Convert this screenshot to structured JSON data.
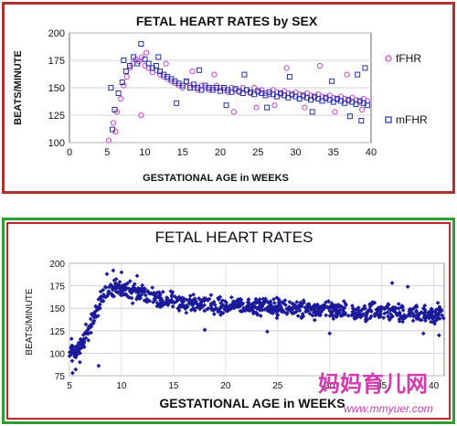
{
  "chart_data": [
    {
      "type": "scatter",
      "title": "FETAL HEART RATES by SEX",
      "xlabel": "GESTATIONAL AGE in WEEKS",
      "ylabel": "BEATS/MINUTE",
      "xlim": [
        0,
        40
      ],
      "ylim": [
        100,
        200
      ],
      "xticks": [
        "0",
        "5",
        "10",
        "15",
        "20",
        "25",
        "30",
        "35",
        "40"
      ],
      "yticks": [
        "100",
        "125",
        "150",
        "175",
        "200"
      ],
      "grid": true,
      "legend": "right",
      "series": [
        {
          "name": "fFHR",
          "marker": "circle",
          "color": "#cc44cc",
          "points": [
            [
              5.2,
              102
            ],
            [
              5.8,
              118
            ],
            [
              6.3,
              128
            ],
            [
              6.8,
              140
            ],
            [
              7.2,
              152
            ],
            [
              7.6,
              160
            ],
            [
              8.0,
              168
            ],
            [
              8.4,
              172
            ],
            [
              8.8,
              176
            ],
            [
              9.2,
              174
            ],
            [
              9.6,
              178
            ],
            [
              10.0,
              170
            ],
            [
              10.5,
              168
            ],
            [
              11.0,
              164
            ],
            [
              11.5,
              166
            ],
            [
              12.0,
              162
            ],
            [
              12.5,
              160
            ],
            [
              13.0,
              158
            ],
            [
              13.5,
              156
            ],
            [
              14.0,
              154
            ],
            [
              14.5,
              152
            ],
            [
              15.0,
              150
            ],
            [
              15.5,
              155
            ],
            [
              16.0,
              152
            ],
            [
              16.5,
              150
            ],
            [
              17.0,
              148
            ],
            [
              17.5,
              152
            ],
            [
              18.0,
              150
            ],
            [
              18.5,
              148
            ],
            [
              19.0,
              150
            ],
            [
              19.5,
              152
            ],
            [
              20.0,
              150
            ],
            [
              20.5,
              148
            ],
            [
              21.0,
              146
            ],
            [
              21.5,
              150
            ],
            [
              22.0,
              148
            ],
            [
              22.5,
              146
            ],
            [
              23.0,
              150
            ],
            [
              23.5,
              148
            ],
            [
              24.0,
              145
            ],
            [
              24.5,
              150
            ],
            [
              25.0,
              146
            ],
            [
              25.5,
              148
            ],
            [
              26.0,
              145
            ],
            [
              26.5,
              144
            ],
            [
              27.0,
              148
            ],
            [
              27.5,
              146
            ],
            [
              28.0,
              144
            ],
            [
              28.5,
              147
            ],
            [
              29.0,
              145
            ],
            [
              29.5,
              143
            ],
            [
              30.0,
              146
            ],
            [
              30.5,
              144
            ],
            [
              31.0,
              142
            ],
            [
              31.5,
              145
            ],
            [
              32.0,
              143
            ],
            [
              32.5,
              141
            ],
            [
              33.0,
              144
            ],
            [
              33.5,
              142
            ],
            [
              34.0,
              140
            ],
            [
              34.5,
              143
            ],
            [
              35.0,
              141
            ],
            [
              35.5,
              139
            ],
            [
              36.0,
              142
            ],
            [
              36.5,
              140
            ],
            [
              37.0,
              138
            ],
            [
              37.5,
              141
            ],
            [
              38.0,
              139
            ],
            [
              38.5,
              137
            ],
            [
              39.0,
              140
            ],
            [
              39.5,
              138
            ],
            [
              10.2,
              182
            ],
            [
              12.8,
              172
            ],
            [
              16.3,
              165
            ],
            [
              21.8,
              128
            ],
            [
              24.8,
              132
            ],
            [
              28.8,
              168
            ],
            [
              33.2,
              170
            ],
            [
              36.8,
              162
            ],
            [
              9.5,
              125
            ],
            [
              6.1,
              110
            ],
            [
              19.2,
              162
            ],
            [
              27.2,
              134
            ],
            [
              31.2,
              132
            ],
            [
              35.2,
              128
            ],
            [
              38.8,
              130
            ]
          ]
        },
        {
          "name": "mFHR",
          "marker": "square",
          "color": "#2233aa",
          "points": [
            [
              5.5,
              150
            ],
            [
              6.0,
              130
            ],
            [
              6.5,
              145
            ],
            [
              7.0,
              155
            ],
            [
              7.5,
              165
            ],
            [
              8.0,
              170
            ],
            [
              8.5,
              178
            ],
            [
              9.0,
              172
            ],
            [
              9.5,
              190
            ],
            [
              10.0,
              176
            ],
            [
              10.5,
              172
            ],
            [
              11.0,
              168
            ],
            [
              11.5,
              170
            ],
            [
              12.0,
              165
            ],
            [
              12.5,
              162
            ],
            [
              13.0,
              160
            ],
            [
              13.5,
              158
            ],
            [
              14.0,
              156
            ],
            [
              14.5,
              154
            ],
            [
              15.0,
              152
            ],
            [
              15.5,
              156
            ],
            [
              16.0,
              150
            ],
            [
              16.5,
              153
            ],
            [
              17.0,
              150
            ],
            [
              17.5,
              148
            ],
            [
              18.0,
              152
            ],
            [
              18.5,
              150
            ],
            [
              19.0,
              148
            ],
            [
              19.5,
              150
            ],
            [
              20.0,
              147
            ],
            [
              20.5,
              150
            ],
            [
              21.0,
              148
            ],
            [
              21.5,
              146
            ],
            [
              22.0,
              149
            ],
            [
              22.5,
              147
            ],
            [
              23.0,
              145
            ],
            [
              23.5,
              148
            ],
            [
              24.0,
              146
            ],
            [
              24.5,
              144
            ],
            [
              25.0,
              147
            ],
            [
              25.5,
              145
            ],
            [
              26.0,
              143
            ],
            [
              26.5,
              146
            ],
            [
              27.0,
              144
            ],
            [
              27.5,
              142
            ],
            [
              28.0,
              145
            ],
            [
              28.5,
              143
            ],
            [
              29.0,
              141
            ],
            [
              29.5,
              144
            ],
            [
              30.0,
              142
            ],
            [
              30.5,
              140
            ],
            [
              31.0,
              143
            ],
            [
              31.5,
              141
            ],
            [
              32.0,
              139
            ],
            [
              32.5,
              142
            ],
            [
              33.0,
              140
            ],
            [
              33.5,
              138
            ],
            [
              34.0,
              141
            ],
            [
              34.5,
              139
            ],
            [
              35.0,
              137
            ],
            [
              35.5,
              140
            ],
            [
              36.0,
              138
            ],
            [
              36.5,
              136
            ],
            [
              37.0,
              139
            ],
            [
              37.5,
              137
            ],
            [
              38.0,
              135
            ],
            [
              38.5,
              138
            ],
            [
              39.0,
              136
            ],
            [
              39.5,
              134
            ],
            [
              5.7,
              112
            ],
            [
              7.2,
              175
            ],
            [
              11.8,
              178
            ],
            [
              14.2,
              136
            ],
            [
              17.2,
              166
            ],
            [
              20.8,
              134
            ],
            [
              23.2,
              162
            ],
            [
              26.2,
              132
            ],
            [
              29.2,
              160
            ],
            [
              32.2,
              128
            ],
            [
              34.8,
              156
            ],
            [
              37.2,
              124
            ],
            [
              38.2,
              162
            ],
            [
              39.2,
              168
            ],
            [
              38.7,
              120
            ]
          ]
        }
      ]
    },
    {
      "type": "scatter",
      "title": "FETAL HEART RATES",
      "xlabel": "GESTATIONAL AGE in WEEKS",
      "ylabel": "BEATS/MINUTE",
      "xlim": [
        5,
        41
      ],
      "ylim": [
        75,
        200
      ],
      "xticks": [
        "5",
        "10",
        "15",
        "20",
        "25",
        "30",
        "35",
        "40"
      ],
      "yticks": [
        "75",
        "100",
        "125",
        "150",
        "175",
        "200"
      ],
      "grid": true,
      "series": [
        {
          "marker": "diamond",
          "color": "#1a1a9a",
          "trend": [
            [
              5,
              102
            ],
            [
              6,
              106
            ],
            [
              7,
              130
            ],
            [
              8,
              160
            ],
            [
              9,
              172
            ],
            [
              10,
              172
            ],
            [
              12,
              165
            ],
            [
              15,
              158
            ],
            [
              20,
              153
            ],
            [
              25,
              151
            ],
            [
              30,
              148
            ],
            [
              35,
              146
            ],
            [
              40,
              144
            ],
            [
              41,
              143
            ]
          ],
          "spread": 14,
          "outliers": [
            [
              5.3,
              78
            ],
            [
              5.6,
              82
            ],
            [
              5.2,
              116
            ],
            [
              6.0,
              90
            ],
            [
              7.8,
              86
            ],
            [
              9.2,
              192
            ],
            [
              10.0,
              190
            ],
            [
              8.6,
              188
            ],
            [
              11.5,
              186
            ],
            [
              36.0,
              178
            ],
            [
              37.5,
              174
            ],
            [
              39.0,
              122
            ],
            [
              40.5,
              120
            ],
            [
              24.0,
              124
            ],
            [
              30.0,
              122
            ],
            [
              18.0,
              126
            ]
          ]
        }
      ]
    }
  ],
  "watermark": {
    "chinese": "妈妈育儿网",
    "url": "www.mmyuer.com"
  }
}
